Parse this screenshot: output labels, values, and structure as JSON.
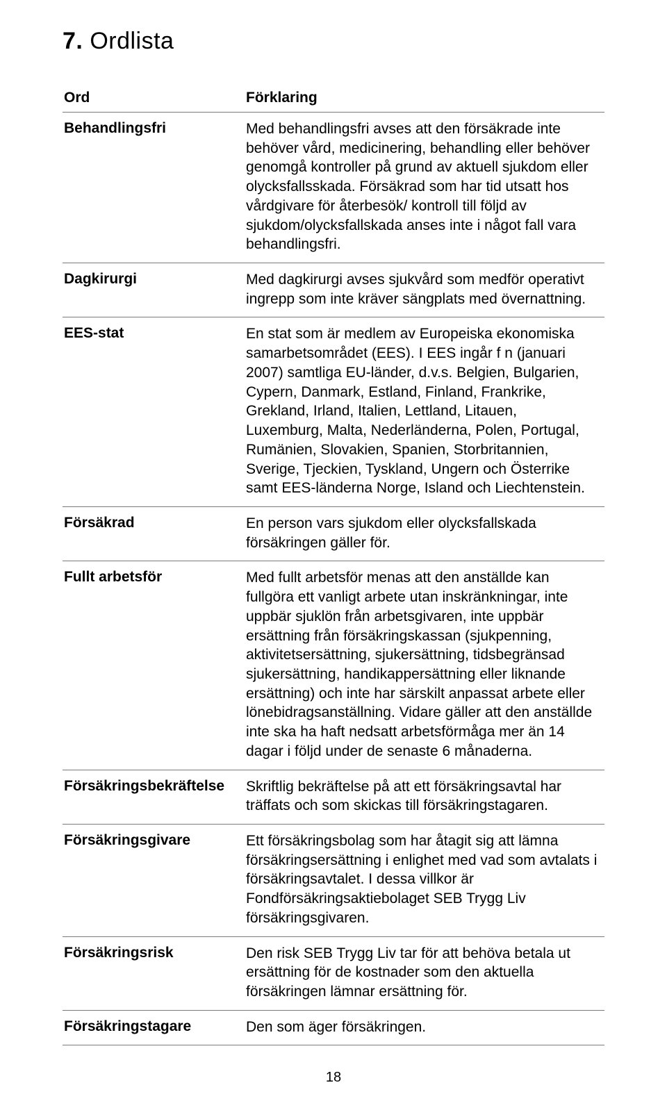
{
  "page_title_prefix": "7.",
  "page_title_text": "Ordlista",
  "page_number": "18",
  "columns": {
    "term_header": "Ord",
    "def_header": "Förklaring"
  },
  "rows": [
    {
      "term": "Behandlingsfri",
      "paragraphs": [
        "Med behandlingsfri avses att den försäkrade inte behöver vård, medicinering, behandling eller behöver genomgå kontroller på grund av aktuell sjukdom eller olycksfallsskada. Försäkrad som har tid utsatt hos vårdgivare för återbesök/ kontroll till följd av sjukdom/olycksfallskada anses inte i något fall vara behandlingsfri."
      ]
    },
    {
      "term": "Dagkirurgi",
      "paragraphs": [
        "Med dagkirurgi avses sjukvård som medför operativt ingrepp som inte kräver sängplats med övernattning."
      ]
    },
    {
      "term": "EES-stat",
      "paragraphs": [
        "En stat som är medlem av Europeiska ekonomiska samarbetsområdet (EES). I EES ingår f n (januari 2007) samtliga EU-länder, d.v.s. Belgien, Bulgarien, Cypern, Danmark, Estland, Finland, Frankrike, Grekland, Irland, Italien, Lettland, Litauen, Luxemburg, Malta, Nederländerna, Polen, Portugal, Rumänien, Slovakien, Spanien, Storbritannien, Sverige, Tjeckien, Tyskland, Ungern och Österrike samt EES-länderna Norge, Island och Liechtenstein."
      ]
    },
    {
      "term": "Försäkrad",
      "paragraphs": [
        "En person vars sjukdom eller olycksfallskada försäkringen gäller för."
      ]
    },
    {
      "term": "Fullt arbetsför",
      "paragraphs": [
        "Med fullt arbetsför menas att den anställde kan fullgöra ett vanligt arbete utan inskränkningar, inte uppbär sjuklön från arbetsgivaren, inte uppbär ersättning från försäkringskassan (sjukpenning, aktivitetsersättning, sjukersättning, tidsbegränsad sjukersättning, handikappersättning eller liknande ersättning) och inte har särskilt anpassat arbete eller lönebidragsanställning. Vidare gäller att den anställde inte ska ha haft nedsatt arbetsförmåga mer än 14 dagar i följd under de senaste 6 månaderna."
      ]
    },
    {
      "term": "Försäkringsbekräftelse",
      "paragraphs": [
        "Skriftlig bekräftelse på att ett försäkringsavtal har träffats och som skickas till försäkringstagaren."
      ]
    },
    {
      "term": "Försäkringsgivare",
      "paragraphs": [
        "Ett försäkringsbolag som har åtagit sig att lämna försäkringsersättning i enlighet med vad som avtalats i försäkringsavtalet. I dessa villkor är Fondförsäkringsaktiebolaget SEB Trygg Liv försäkringsgivaren."
      ]
    },
    {
      "term": "Försäkringsrisk",
      "paragraphs": [
        "Den risk SEB Trygg Liv tar för att behöva betala ut ersättning för de kostnader som den aktuella försäkringen lämnar ersättning för."
      ]
    },
    {
      "term": "Försäkringstagare",
      "paragraphs": [
        "Den som äger försäkringen."
      ]
    }
  ]
}
